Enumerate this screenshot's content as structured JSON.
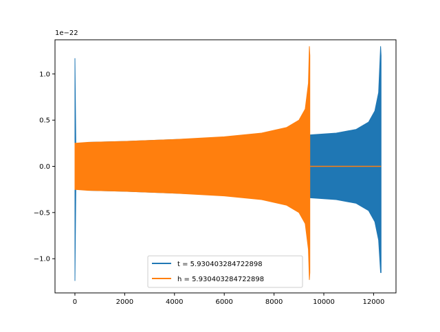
{
  "chart_data": {
    "type": "line",
    "title": "",
    "xlabel": "",
    "ylabel": "",
    "y_offset_label": "1e−22",
    "y_scale": 1e-22,
    "xlim": [
      -800,
      12900
    ],
    "ylim": [
      -1.37,
      1.37
    ],
    "x_ticks": [
      0,
      2000,
      4000,
      6000,
      8000,
      10000,
      12000
    ],
    "x_tick_labels": [
      "0",
      "2000",
      "4000",
      "6000",
      "8000",
      "10000",
      "12000"
    ],
    "y_ticks": [
      -1.0,
      -0.5,
      0.0,
      0.5,
      1.0
    ],
    "y_tick_labels": [
      "−1.0",
      "−0.5",
      "0.0",
      "0.5",
      "1.0"
    ],
    "grid": false,
    "legend_position": "lower-center",
    "series": [
      {
        "name": "t = 5.930403284722898",
        "color": "#1f77b4",
        "envelope": {
          "x": [
            0,
            40,
            500,
            2000,
            4000,
            6000,
            8000,
            9400,
            10500,
            11300,
            11800,
            12050,
            12200,
            12280,
            12300
          ],
          "upper": [
            1.17,
            0.2,
            0.26,
            0.27,
            0.29,
            0.31,
            0.33,
            0.34,
            0.36,
            0.4,
            0.48,
            0.6,
            0.8,
            1.3,
            1.2
          ],
          "lower": [
            -1.24,
            -0.2,
            -0.26,
            -0.27,
            -0.29,
            -0.31,
            -0.33,
            -0.34,
            -0.36,
            -0.4,
            -0.48,
            -0.6,
            -0.8,
            -1.15,
            -1.15
          ]
        }
      },
      {
        "name": "h = 5.930403284722898",
        "color": "#ff7f0e",
        "envelope": {
          "x": [
            0,
            30,
            500,
            2000,
            4000,
            6000,
            7500,
            8500,
            9000,
            9250,
            9380,
            9420,
            9440
          ],
          "upper": [
            0.25,
            0.25,
            0.26,
            0.27,
            0.29,
            0.32,
            0.36,
            0.42,
            0.5,
            0.62,
            0.9,
            1.3,
            1.2
          ],
          "lower": [
            -0.25,
            -0.25,
            -0.26,
            -0.27,
            -0.29,
            -0.32,
            -0.36,
            -0.42,
            -0.5,
            -0.62,
            -0.9,
            -1.23,
            -1.15
          ]
        },
        "flat_after": {
          "x_start": 9450,
          "x_end": 12300,
          "value": 0.0
        }
      }
    ]
  }
}
